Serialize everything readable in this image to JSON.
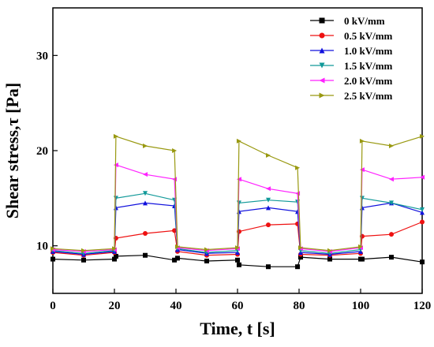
{
  "chart_data": {
    "type": "line",
    "xlabel": "Time, t [s]",
    "ylabel": "Shear stress,τ [Pa]",
    "xlim": [
      0,
      120
    ],
    "ylim": [
      5,
      35
    ],
    "xticks": [
      0,
      20,
      40,
      60,
      80,
      100,
      120
    ],
    "yticks": [
      10,
      20,
      30
    ],
    "grid": false,
    "legend_position": "top-right",
    "x": [
      0,
      10,
      20,
      20.5,
      30,
      39.5,
      40.5,
      50,
      60,
      60.5,
      70,
      79.5,
      80.5,
      90,
      100,
      100.5,
      110,
      120
    ],
    "series": [
      {
        "name": "0 kV/mm",
        "color": "#000000",
        "marker": "square",
        "values": [
          8.6,
          8.5,
          8.6,
          8.9,
          9.0,
          8.5,
          8.7,
          8.4,
          8.5,
          8.0,
          7.8,
          7.8,
          8.8,
          8.6,
          8.6,
          8.6,
          8.8,
          8.3
        ]
      },
      {
        "name": "0.5 kV/mm",
        "color": "#ee1111",
        "marker": "circle",
        "values": [
          9.3,
          9.0,
          9.3,
          10.8,
          11.3,
          11.6,
          9.4,
          9.0,
          9.1,
          11.5,
          12.2,
          12.3,
          9.1,
          9.0,
          9.2,
          11.0,
          11.2,
          12.5
        ]
      },
      {
        "name": "1.0 kV/mm",
        "color": "#1111dd",
        "marker": "triangle-up",
        "values": [
          9.4,
          9.1,
          9.4,
          14.0,
          14.5,
          14.2,
          9.6,
          9.2,
          9.3,
          13.6,
          14.0,
          13.6,
          9.3,
          9.1,
          9.4,
          14.0,
          14.5,
          13.5
        ]
      },
      {
        "name": "1.5 kV/mm",
        "color": "#119999",
        "marker": "triangle-down",
        "values": [
          9.5,
          9.2,
          9.5,
          15.0,
          15.5,
          14.8,
          9.7,
          9.3,
          9.5,
          14.5,
          14.8,
          14.6,
          9.5,
          9.2,
          9.6,
          15.0,
          14.5,
          13.8
        ]
      },
      {
        "name": "2.0 kV/mm",
        "color": "#ff22ff",
        "marker": "triangle-left",
        "values": [
          9.6,
          9.4,
          9.6,
          18.5,
          17.5,
          17.0,
          9.8,
          9.5,
          9.7,
          17.0,
          16.0,
          15.5,
          9.7,
          9.4,
          9.8,
          18.0,
          17.0,
          17.2
        ]
      },
      {
        "name": "2.5 kV/mm",
        "color": "#999911",
        "marker": "triangle-right",
        "values": [
          9.7,
          9.5,
          9.7,
          21.5,
          20.5,
          20.0,
          9.9,
          9.6,
          9.8,
          21.0,
          19.5,
          18.2,
          9.8,
          9.5,
          9.9,
          21.0,
          20.5,
          21.5
        ]
      }
    ]
  }
}
